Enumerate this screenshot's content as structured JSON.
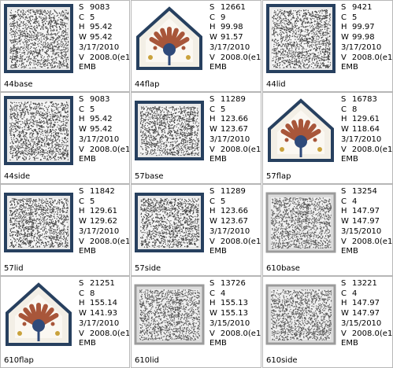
{
  "designs": [
    {
      "name": "44base",
      "shape": "square",
      "stitches": "9083",
      "colors": "5",
      "height": "95.42",
      "width": "95.42",
      "date": "3/17/2010",
      "version": "2008.0(e1",
      "format": "EMB"
    },
    {
      "name": "44flap",
      "shape": "flap",
      "stitches": "12661",
      "colors": "9",
      "height": "99.98",
      "width": "91.57",
      "date": "3/17/2010",
      "version": "2008.0(e1",
      "format": "EMB"
    },
    {
      "name": "44lid",
      "shape": "square",
      "stitches": "9421",
      "colors": "5",
      "height": "99.97",
      "width": "99.98",
      "date": "3/17/2010",
      "version": "2008.0(e1",
      "format": "EMB"
    },
    {
      "name": "44side",
      "shape": "square",
      "stitches": "9083",
      "colors": "5",
      "height": "95.42",
      "width": "95.42",
      "date": "3/17/2010",
      "version": "2008.0(e1",
      "format": "EMB"
    },
    {
      "name": "57base",
      "shape": "rect",
      "stitches": "11289",
      "colors": "5",
      "height": "123.66",
      "width": "123.67",
      "date": "3/17/2010",
      "version": "2008.0(e1",
      "format": "EMB"
    },
    {
      "name": "57flap",
      "shape": "flap",
      "stitches": "16783",
      "colors": "8",
      "height": "129.61",
      "width": "118.64",
      "date": "3/17/2010",
      "version": "2008.0(e1",
      "format": "EMB"
    },
    {
      "name": "57lid",
      "shape": "rect",
      "stitches": "11842",
      "colors": "5",
      "height": "129.61",
      "width": "129.62",
      "date": "3/17/2010",
      "version": "2008.0(e1",
      "format": "EMB"
    },
    {
      "name": "57side",
      "shape": "rect",
      "stitches": "11289",
      "colors": "5",
      "height": "123.66",
      "width": "123.67",
      "date": "3/17/2010",
      "version": "2008.0(e1",
      "format": "EMB"
    },
    {
      "name": "610base",
      "shape": "grey",
      "stitches": "13254",
      "colors": "4",
      "height": "147.97",
      "width": "147.97",
      "date": "3/15/2010",
      "version": "2008.0(e1",
      "format": "EMB"
    },
    {
      "name": "610flap",
      "shape": "flap",
      "stitches": "21251",
      "colors": "8",
      "height": "155.14",
      "width": "141.93",
      "date": "3/17/2010",
      "version": "2008.0(e1",
      "format": "EMB"
    },
    {
      "name": "610lid",
      "shape": "grey",
      "stitches": "13726",
      "colors": "4",
      "height": "155.13",
      "width": "155.13",
      "date": "3/15/2010",
      "version": "2008.0(e1",
      "format": "EMB"
    },
    {
      "name": "610side",
      "shape": "grey",
      "stitches": "13221",
      "colors": "4",
      "height": "147.97",
      "width": "147.97",
      "date": "3/15/2010",
      "version": "2008.0(e1",
      "format": "EMB"
    }
  ],
  "labels": {
    "stitches": "S",
    "colors": "C",
    "height": "H",
    "width": "W",
    "version": "V"
  },
  "colors": {
    "border_navy": "#27405f",
    "fill_grey": "#9b9b9b",
    "flap_rust": "#a8563a",
    "flap_blue": "#2f4a7a",
    "flap_gold": "#c9a23c"
  }
}
